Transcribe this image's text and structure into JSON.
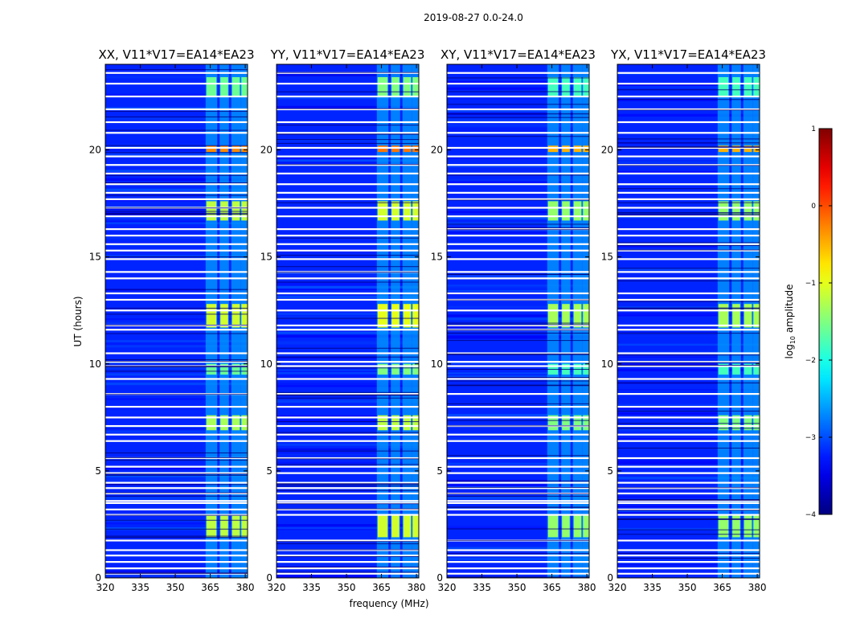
{
  "figure": {
    "suptitle": "2019-08-27 0.0-24.0",
    "xlabel": "frequency (MHz)",
    "ylabel": "UT (hours)",
    "colorbar_label_prefix": "log",
    "colorbar_label_sub": "10",
    "colorbar_label_suffix": " amplitude"
  },
  "chart_data": {
    "type": "heatmap",
    "title": "2019-08-27 0.0-24.0",
    "xlabel": "frequency (MHz)",
    "ylabel": "UT (hours)",
    "xlim": [
      320,
      381
    ],
    "ylim": [
      0,
      24
    ],
    "x_ticks": [
      320,
      335,
      350,
      365,
      380
    ],
    "y_ticks": [
      0,
      5,
      10,
      15,
      20
    ],
    "colorbar": {
      "label": "log10 amplitude",
      "range": [
        -4,
        1
      ],
      "ticks": [
        1,
        0,
        -1,
        -2,
        -3,
        -4
      ],
      "tick_labels": [
        "1",
        "0",
        "−1",
        "−2",
        "−3",
        "−4"
      ],
      "colormap": "jet"
    },
    "panels": [
      {
        "title": "XX, V11*V17=EA14*EA23",
        "polarization": "XX"
      },
      {
        "title": "YY, V11*V17=EA14*EA23",
        "polarization": "YY"
      },
      {
        "title": "XY, V11*V17=EA14*EA23",
        "polarization": "XY"
      },
      {
        "title": "YX, V11*V17=EA14*EA23",
        "polarization": "YX"
      }
    ],
    "background_level": -3.2,
    "rfi_bands_mhz": [
      [
        363,
        368
      ],
      [
        369,
        373
      ],
      [
        374,
        378
      ],
      [
        378,
        383
      ]
    ],
    "rfi_time_blocks": [
      {
        "t": [
          1.9,
          2.95
        ],
        "level": -1.2
      },
      {
        "t": [
          6.9,
          7.6
        ],
        "level": -1.3
      },
      {
        "t": [
          9.5,
          10.0
        ],
        "level": -1.6
      },
      {
        "t": [
          11.7,
          12.8
        ],
        "level": -1.1
      },
      {
        "t": [
          16.7,
          17.6
        ],
        "level": -1.2
      },
      {
        "t": [
          19.9,
          20.2
        ],
        "level": -0.3
      },
      {
        "t": [
          22.5,
          23.4
        ],
        "level": -1.6
      }
    ],
    "flagged_hours": [
      0.2,
      0.45,
      0.75,
      1.05,
      1.3,
      1.75,
      2.95,
      3.2,
      3.5,
      3.6,
      3.95,
      4.2,
      4.45,
      4.9,
      5.2,
      5.6,
      6.4,
      6.7,
      7.1,
      7.5,
      8.0,
      8.6,
      9.3,
      9.9,
      10.1,
      10.5,
      11.6,
      11.8,
      12.5,
      13.0,
      13.3,
      14.0,
      14.3,
      14.9,
      15.3,
      15.6,
      16.0,
      16.3,
      16.9,
      17.3,
      17.7,
      18.0,
      18.4,
      18.9,
      19.3,
      19.7,
      20.1,
      20.8,
      21.3,
      21.9,
      22.5,
      23.1,
      23.6
    ]
  }
}
